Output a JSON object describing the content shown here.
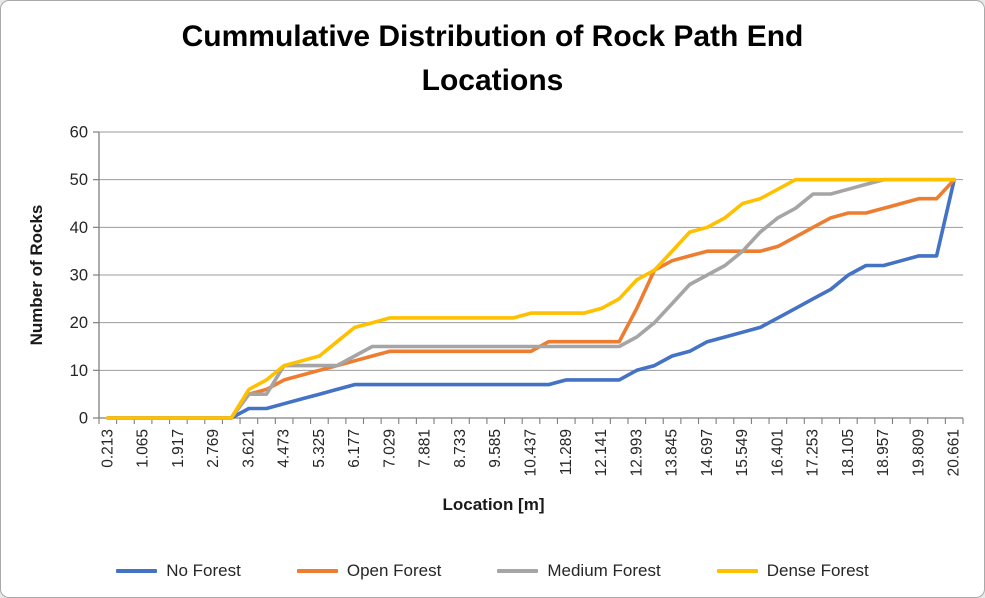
{
  "title": "Cummulative Distribution of Rock Path End Locations",
  "y_axis": {
    "title": "Number of Rocks",
    "ticks": [
      0,
      10,
      20,
      30,
      40,
      50,
      60
    ],
    "min": 0,
    "max": 60
  },
  "x_axis": {
    "title": "Location [m]",
    "tick_labels": [
      "0.213",
      "1.065",
      "1.917",
      "2.769",
      "3.621",
      "4.473",
      "5.325",
      "6.177",
      "7.029",
      "7.881",
      "8.733",
      "9.585",
      "10.437",
      "11.289",
      "12.141",
      "12.993",
      "13.845",
      "14.697",
      "15.549",
      "16.401",
      "17.253",
      "18.105",
      "18.957",
      "19.809",
      "20.661"
    ]
  },
  "chart_data": {
    "type": "line",
    "title": "Cummulative Distribution of Rock Path End Locations",
    "xlabel": "Location [m]",
    "ylabel": "Number of Rocks",
    "ylim": [
      0,
      60
    ],
    "grid": "horizontal",
    "legend_position": "bottom",
    "x_label_every": 2,
    "x": [
      0.213,
      0.639,
      1.065,
      1.491,
      1.917,
      2.343,
      2.769,
      3.195,
      3.621,
      4.047,
      4.473,
      4.899,
      5.325,
      5.751,
      6.177,
      6.603,
      7.029,
      7.455,
      7.881,
      8.307,
      8.733,
      9.159,
      9.585,
      10.011,
      10.437,
      10.863,
      11.289,
      11.715,
      12.141,
      12.567,
      12.993,
      13.419,
      13.845,
      14.271,
      14.697,
      15.123,
      15.549,
      15.975,
      16.401,
      16.827,
      17.253,
      17.679,
      18.105,
      18.531,
      18.957,
      19.383,
      19.809,
      20.235,
      20.661
    ],
    "series": [
      {
        "name": "No Forest",
        "color": "#4472C4",
        "values": [
          0,
          0,
          0,
          0,
          0,
          0,
          0,
          0,
          2,
          2,
          3,
          4,
          5,
          6,
          7,
          7,
          7,
          7,
          7,
          7,
          7,
          7,
          7,
          7,
          7,
          7,
          8,
          8,
          8,
          8,
          10,
          11,
          13,
          14,
          16,
          17,
          18,
          19,
          21,
          23,
          25,
          27,
          30,
          32,
          32,
          33,
          34,
          34,
          50
        ]
      },
      {
        "name": "Open Forest",
        "color": "#ED7D31",
        "values": [
          0,
          0,
          0,
          0,
          0,
          0,
          0,
          0,
          5,
          6,
          8,
          9,
          10,
          11,
          12,
          13,
          14,
          14,
          14,
          14,
          14,
          14,
          14,
          14,
          14,
          16,
          16,
          16,
          16,
          16,
          23,
          31,
          33,
          34,
          35,
          35,
          35,
          35,
          36,
          38,
          40,
          42,
          43,
          43,
          44,
          45,
          46,
          46,
          50
        ]
      },
      {
        "name": "Medium Forest",
        "color": "#A5A5A5",
        "values": [
          0,
          0,
          0,
          0,
          0,
          0,
          0,
          0,
          5,
          5,
          11,
          11,
          11,
          11,
          13,
          15,
          15,
          15,
          15,
          15,
          15,
          15,
          15,
          15,
          15,
          15,
          15,
          15,
          15,
          15,
          17,
          20,
          24,
          28,
          30,
          32,
          35,
          39,
          42,
          44,
          47,
          47,
          48,
          49,
          50,
          50,
          50,
          50,
          50
        ]
      },
      {
        "name": "Dense Forest",
        "color": "#FFC000",
        "values": [
          0,
          0,
          0,
          0,
          0,
          0,
          0,
          0,
          6,
          8,
          11,
          12,
          13,
          16,
          19,
          20,
          21,
          21,
          21,
          21,
          21,
          21,
          21,
          21,
          22,
          22,
          22,
          22,
          23,
          25,
          29,
          31,
          35,
          39,
          40,
          42,
          45,
          46,
          48,
          50,
          50,
          50,
          50,
          50,
          50,
          50,
          50,
          50,
          50
        ]
      }
    ]
  }
}
